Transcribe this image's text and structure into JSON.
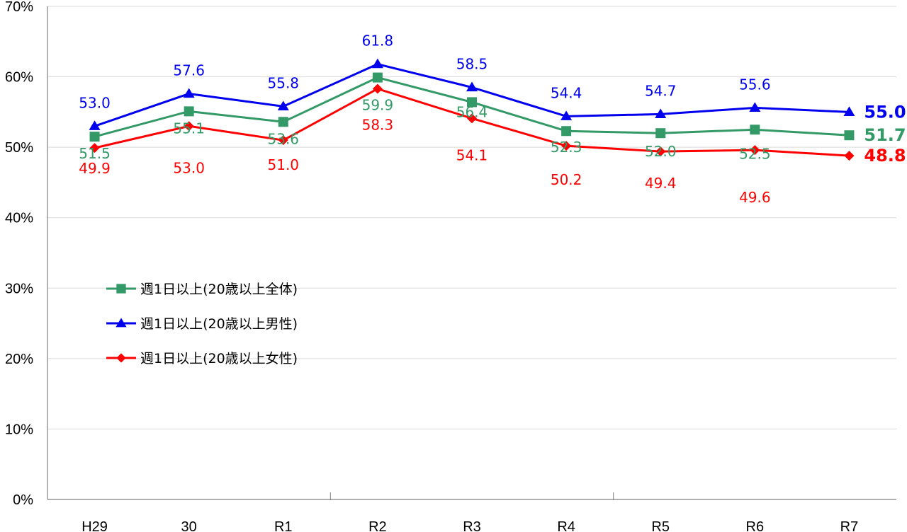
{
  "chart_data": {
    "type": "line",
    "title": "",
    "xlabel": "",
    "ylabel": "",
    "ylim": [
      0,
      70
    ],
    "y_ticks": [
      0,
      10,
      20,
      30,
      40,
      50,
      60,
      70
    ],
    "y_tick_suffix": "%",
    "categories": [
      "H29",
      "30",
      "R1",
      "R2",
      "R3",
      "R4",
      "R5",
      "R6",
      "R7"
    ],
    "legend_position": "middle-left",
    "series": [
      {
        "name": "週1日以上(20歳以上全体)",
        "color": "#339966",
        "marker": "square",
        "values": [
          51.5,
          55.1,
          53.6,
          59.9,
          56.4,
          52.3,
          52.0,
          52.5,
          51.7
        ],
        "labels": [
          "51.5",
          "55.1",
          "53.6",
          "59.9",
          "56.4",
          "52.3",
          "52.0",
          "52.5",
          "51.7"
        ]
      },
      {
        "name": "週1日以上(20歳以上男性)",
        "color": "#0000ee",
        "marker": "triangle",
        "values": [
          53.0,
          57.6,
          55.8,
          61.8,
          58.5,
          54.4,
          54.7,
          55.6,
          55.0
        ],
        "labels": [
          "53.0",
          "57.6",
          "55.8",
          "61.8",
          "58.5",
          "54.4",
          "54.7",
          "55.6",
          "55.0"
        ]
      },
      {
        "name": "週1日以上(20歳以上女性)",
        "color": "#ff0000",
        "marker": "diamond",
        "values": [
          49.9,
          53.0,
          51.0,
          58.3,
          54.1,
          50.2,
          49.4,
          49.6,
          48.8
        ],
        "labels": [
          "49.9",
          "53.0",
          "51.0",
          "58.3",
          "54.1",
          "50.2",
          "49.4",
          "49.6",
          "48.8"
        ]
      }
    ]
  }
}
